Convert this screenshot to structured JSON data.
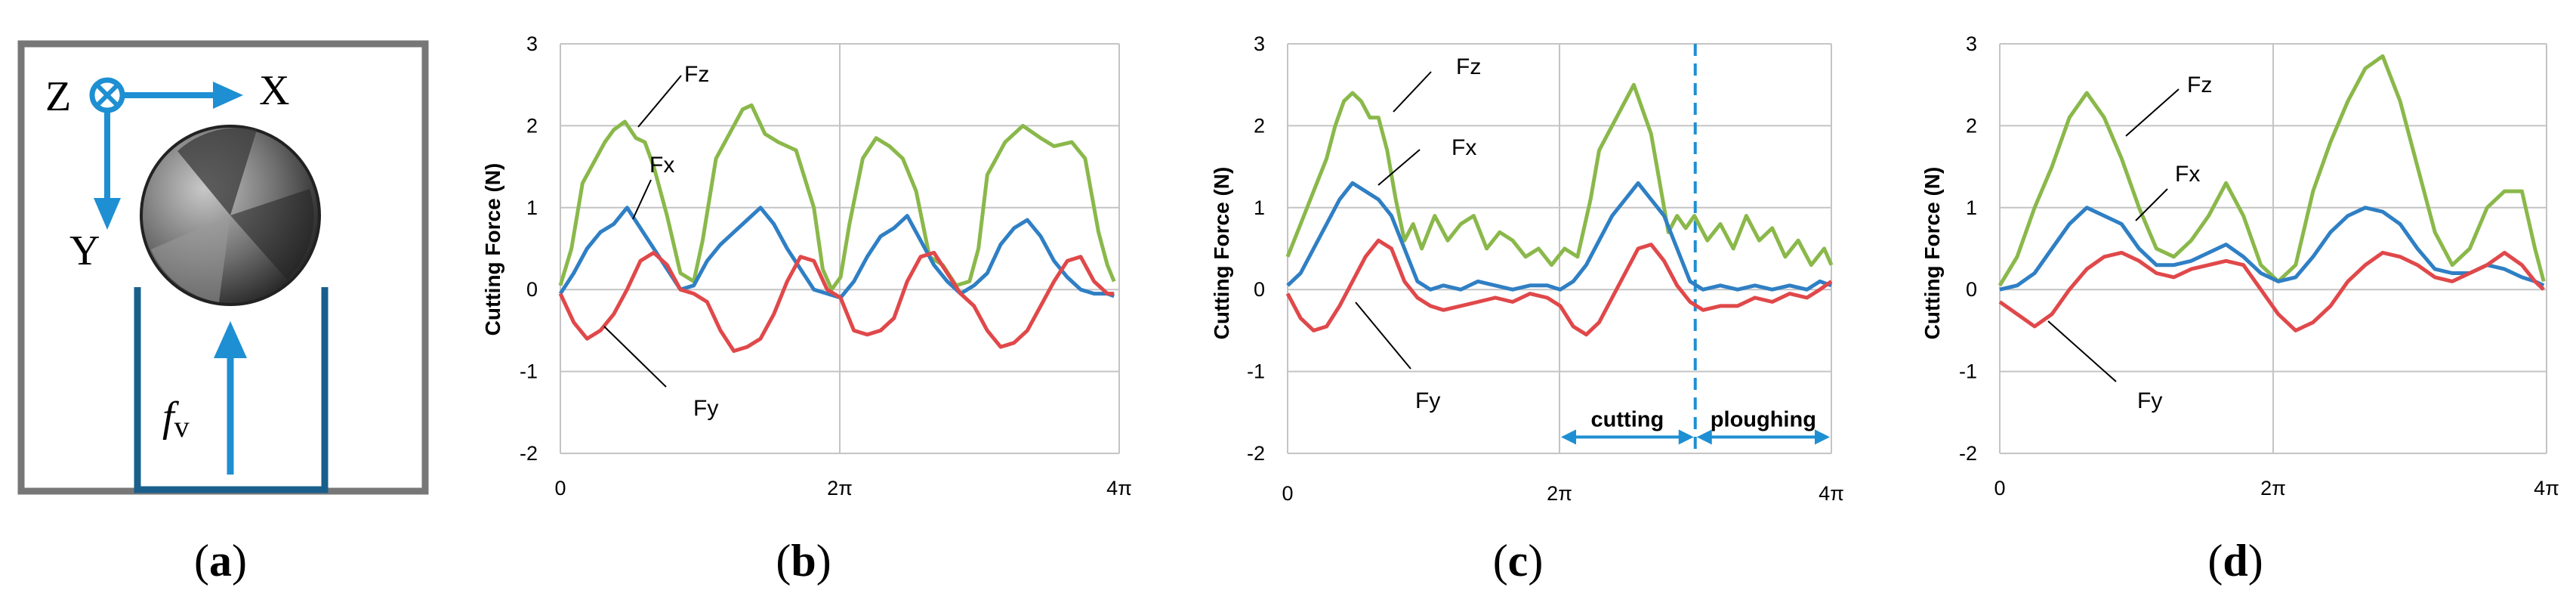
{
  "figure": {
    "labels": [
      "a",
      "b",
      "c",
      "d"
    ]
  },
  "diagram_a": {
    "axis_z": "Z",
    "axis_x": "X",
    "axis_y": "Y",
    "feed_symbol": "f",
    "feed_subscript": "v",
    "colors": {
      "frame": "#777777",
      "blue": "#1e8fd2",
      "toolpath": "#1a5f8c"
    }
  },
  "chart_data": [
    {
      "id": "b",
      "type": "line",
      "ylabel": "Cutting Force (N)",
      "ylim": [
        -2,
        3
      ],
      "yticks": [
        "3",
        "2",
        "1",
        "0",
        "-1",
        "-2"
      ],
      "xlim": [
        0,
        12.566
      ],
      "xticks": [
        "0",
        "2π",
        "4π"
      ],
      "grid": true,
      "series": [
        {
          "name": "Fz",
          "color": "#8ab84a",
          "x": [
            0,
            0.25,
            0.5,
            0.8,
            1.0,
            1.2,
            1.45,
            1.7,
            1.9,
            2.1,
            2.4,
            2.7,
            3.0,
            3.2,
            3.5,
            3.8,
            4.1,
            4.3,
            4.6,
            4.9,
            5.3,
            5.7,
            5.9,
            6.1,
            6.3,
            6.5,
            6.8,
            7.1,
            7.4,
            7.7,
            8.0,
            8.3,
            8.6,
            8.9,
            9.2,
            9.4,
            9.6,
            9.8,
            10.0,
            10.4,
            10.8,
            11.1,
            11.5,
            11.8,
            12.1,
            12.3,
            12.45
          ],
          "y": [
            0.05,
            0.5,
            1.3,
            1.6,
            1.8,
            1.95,
            2.05,
            1.85,
            1.8,
            1.5,
            0.9,
            0.2,
            0.1,
            0.6,
            1.6,
            1.9,
            2.2,
            2.25,
            1.9,
            1.8,
            1.7,
            1.0,
            0.25,
            0.0,
            0.15,
            0.8,
            1.6,
            1.85,
            1.75,
            1.6,
            1.2,
            0.4,
            0.3,
            0.05,
            0.1,
            0.5,
            1.4,
            1.6,
            1.8,
            2.0,
            1.85,
            1.75,
            1.8,
            1.6,
            0.7,
            0.3,
            0.1
          ]
        },
        {
          "name": "Fx",
          "color": "#2f7fc4",
          "x": [
            0,
            0.3,
            0.6,
            0.9,
            1.2,
            1.5,
            1.8,
            2.1,
            2.4,
            2.7,
            3.0,
            3.3,
            3.6,
            3.9,
            4.2,
            4.5,
            4.8,
            5.1,
            5.4,
            5.7,
            6.0,
            6.3,
            6.6,
            6.9,
            7.2,
            7.5,
            7.8,
            8.1,
            8.4,
            8.7,
            9.0,
            9.3,
            9.6,
            9.9,
            10.2,
            10.5,
            10.8,
            11.1,
            11.4,
            11.7,
            12.0,
            12.3,
            12.45
          ],
          "y": [
            -0.05,
            0.2,
            0.5,
            0.7,
            0.8,
            1.0,
            0.75,
            0.5,
            0.25,
            0.0,
            0.05,
            0.35,
            0.55,
            0.7,
            0.85,
            1.0,
            0.8,
            0.5,
            0.25,
            0.0,
            -0.05,
            -0.1,
            0.1,
            0.4,
            0.65,
            0.75,
            0.9,
            0.6,
            0.3,
            0.1,
            -0.05,
            0.05,
            0.2,
            0.55,
            0.75,
            0.85,
            0.65,
            0.35,
            0.15,
            0.0,
            -0.05,
            -0.05,
            -0.08
          ]
        },
        {
          "name": "Fy",
          "color": "#e0484a",
          "x": [
            0,
            0.3,
            0.6,
            0.9,
            1.2,
            1.5,
            1.8,
            2.1,
            2.4,
            2.7,
            3.0,
            3.3,
            3.6,
            3.9,
            4.2,
            4.5,
            4.8,
            5.1,
            5.4,
            5.7,
            6.0,
            6.3,
            6.6,
            6.9,
            7.2,
            7.5,
            7.8,
            8.1,
            8.4,
            8.7,
            9.0,
            9.3,
            9.6,
            9.9,
            10.2,
            10.5,
            10.8,
            11.1,
            11.4,
            11.7,
            12.0,
            12.3,
            12.45
          ],
          "y": [
            -0.05,
            -0.4,
            -0.6,
            -0.5,
            -0.3,
            0.0,
            0.35,
            0.45,
            0.3,
            0.0,
            -0.05,
            -0.15,
            -0.5,
            -0.75,
            -0.7,
            -0.6,
            -0.3,
            0.1,
            0.4,
            0.35,
            0.0,
            -0.1,
            -0.5,
            -0.55,
            -0.5,
            -0.35,
            0.1,
            0.4,
            0.45,
            0.2,
            -0.05,
            -0.2,
            -0.5,
            -0.7,
            -0.65,
            -0.5,
            -0.2,
            0.1,
            0.35,
            0.4,
            0.1,
            -0.05,
            -0.05
          ]
        }
      ],
      "annotations": [
        "Fz",
        "Fx",
        "Fy"
      ]
    },
    {
      "id": "c",
      "type": "line",
      "ylabel": "Cutting Force (N)",
      "ylim": [
        -2,
        3
      ],
      "yticks": [
        "3",
        "2",
        "1",
        "0",
        "-1",
        "-2"
      ],
      "xlim": [
        0,
        12.566
      ],
      "xticks": [
        "0",
        "2π",
        "4π"
      ],
      "grid": true,
      "series": [
        {
          "name": "Fz",
          "color": "#8ab84a",
          "x": [
            0,
            0.3,
            0.6,
            0.9,
            1.1,
            1.3,
            1.5,
            1.7,
            1.9,
            2.1,
            2.3,
            2.5,
            2.7,
            2.9,
            3.1,
            3.4,
            3.7,
            4.0,
            4.3,
            4.6,
            4.9,
            5.2,
            5.5,
            5.8,
            6.1,
            6.4,
            6.7,
            7.0,
            7.2,
            7.4,
            7.6,
            7.8,
            8.0,
            8.2,
            8.4,
            8.6,
            8.8,
            9.0,
            9.2,
            9.4,
            9.7,
            10.0,
            10.3,
            10.6,
            10.9,
            11.2,
            11.5,
            11.8,
            12.1,
            12.4,
            12.566
          ],
          "y": [
            0.4,
            0.8,
            1.2,
            1.6,
            2.0,
            2.3,
            2.4,
            2.3,
            2.1,
            2.1,
            1.7,
            1.1,
            0.6,
            0.8,
            0.5,
            0.9,
            0.6,
            0.8,
            0.9,
            0.5,
            0.7,
            0.6,
            0.4,
            0.5,
            0.3,
            0.5,
            0.4,
            1.1,
            1.7,
            1.9,
            2.1,
            2.3,
            2.5,
            2.2,
            1.9,
            1.3,
            0.7,
            0.9,
            0.75,
            0.9,
            0.6,
            0.8,
            0.5,
            0.9,
            0.6,
            0.75,
            0.4,
            0.6,
            0.3,
            0.5,
            0.3
          ]
        },
        {
          "name": "Fx",
          "color": "#2f7fc4",
          "x": [
            0,
            0.3,
            0.6,
            0.9,
            1.2,
            1.5,
            1.8,
            2.1,
            2.4,
            2.7,
            3.0,
            3.3,
            3.6,
            4.0,
            4.4,
            4.8,
            5.2,
            5.6,
            6.0,
            6.3,
            6.6,
            6.9,
            7.2,
            7.5,
            7.8,
            8.1,
            8.4,
            8.7,
            9.0,
            9.3,
            9.6,
            10.0,
            10.4,
            10.8,
            11.2,
            11.6,
            12.0,
            12.3,
            12.566
          ],
          "y": [
            0.05,
            0.2,
            0.5,
            0.8,
            1.1,
            1.3,
            1.2,
            1.1,
            0.9,
            0.5,
            0.1,
            0.0,
            0.05,
            0.0,
            0.1,
            0.05,
            0.0,
            0.05,
            0.05,
            0.0,
            0.1,
            0.3,
            0.6,
            0.9,
            1.1,
            1.3,
            1.1,
            0.9,
            0.5,
            0.1,
            0.0,
            0.05,
            0.0,
            0.05,
            0.0,
            0.05,
            0.0,
            0.1,
            0.05
          ]
        },
        {
          "name": "Fy",
          "color": "#e0484a",
          "x": [
            0,
            0.3,
            0.6,
            0.9,
            1.2,
            1.5,
            1.8,
            2.1,
            2.4,
            2.7,
            3.0,
            3.3,
            3.6,
            4.0,
            4.4,
            4.8,
            5.2,
            5.6,
            6.0,
            6.3,
            6.6,
            6.9,
            7.2,
            7.5,
            7.8,
            8.1,
            8.4,
            8.7,
            9.0,
            9.3,
            9.6,
            10.0,
            10.4,
            10.8,
            11.2,
            11.6,
            12.0,
            12.3,
            12.566
          ],
          "y": [
            -0.05,
            -0.35,
            -0.5,
            -0.45,
            -0.2,
            0.1,
            0.4,
            0.6,
            0.5,
            0.1,
            -0.1,
            -0.2,
            -0.25,
            -0.2,
            -0.15,
            -0.1,
            -0.15,
            -0.05,
            -0.1,
            -0.2,
            -0.45,
            -0.55,
            -0.4,
            -0.1,
            0.2,
            0.5,
            0.55,
            0.35,
            0.05,
            -0.15,
            -0.25,
            -0.2,
            -0.2,
            -0.1,
            -0.15,
            -0.05,
            -0.1,
            0.0,
            0.1
          ]
        }
      ],
      "annotations": [
        "Fz",
        "Fx",
        "Fy"
      ],
      "dashed_x": 9.42,
      "regions": [
        {
          "label": "cutting",
          "from": 6.283,
          "to": 9.42
        },
        {
          "label": "ploughing",
          "from": 9.42,
          "to": 12.566
        }
      ]
    },
    {
      "id": "d",
      "type": "line",
      "ylabel": "Cutting Force (N)",
      "ylim": [
        -2,
        3
      ],
      "yticks": [
        "3",
        "2",
        "1",
        "0",
        "-1",
        "-2"
      ],
      "xlim": [
        0,
        12.566
      ],
      "xticks": [
        "0",
        "2π",
        "4π"
      ],
      "grid": true,
      "series": [
        {
          "name": "Fz",
          "color": "#8ab84a",
          "x": [
            0,
            0.4,
            0.8,
            1.2,
            1.6,
            2.0,
            2.4,
            2.8,
            3.2,
            3.6,
            4.0,
            4.4,
            4.8,
            5.2,
            5.6,
            6.0,
            6.4,
            6.8,
            7.2,
            7.6,
            8.0,
            8.4,
            8.8,
            9.2,
            9.6,
            10.0,
            10.4,
            10.8,
            11.2,
            11.6,
            12.0,
            12.3,
            12.5
          ],
          "y": [
            0.05,
            0.4,
            1.0,
            1.5,
            2.1,
            2.4,
            2.1,
            1.6,
            1.0,
            0.5,
            0.4,
            0.6,
            0.9,
            1.3,
            0.9,
            0.3,
            0.1,
            0.3,
            1.2,
            1.8,
            2.3,
            2.7,
            2.85,
            2.3,
            1.5,
            0.7,
            0.3,
            0.5,
            1.0,
            1.2,
            1.2,
            0.5,
            0.1
          ]
        },
        {
          "name": "Fx",
          "color": "#2f7fc4",
          "x": [
            0,
            0.4,
            0.8,
            1.2,
            1.6,
            2.0,
            2.4,
            2.8,
            3.2,
            3.6,
            4.0,
            4.4,
            4.8,
            5.2,
            5.6,
            6.0,
            6.4,
            6.8,
            7.2,
            7.6,
            8.0,
            8.4,
            8.8,
            9.2,
            9.6,
            10.0,
            10.4,
            10.8,
            11.2,
            11.6,
            12.0,
            12.3,
            12.5
          ],
          "y": [
            0.0,
            0.05,
            0.2,
            0.5,
            0.8,
            1.0,
            0.9,
            0.8,
            0.5,
            0.3,
            0.3,
            0.35,
            0.45,
            0.55,
            0.4,
            0.2,
            0.1,
            0.15,
            0.4,
            0.7,
            0.9,
            1.0,
            0.95,
            0.8,
            0.5,
            0.25,
            0.2,
            0.2,
            0.3,
            0.25,
            0.15,
            0.1,
            0.05
          ]
        },
        {
          "name": "Fy",
          "color": "#e0484a",
          "x": [
            0,
            0.4,
            0.8,
            1.2,
            1.6,
            2.0,
            2.4,
            2.8,
            3.2,
            3.6,
            4.0,
            4.4,
            4.8,
            5.2,
            5.6,
            6.0,
            6.4,
            6.8,
            7.2,
            7.6,
            8.0,
            8.4,
            8.8,
            9.2,
            9.6,
            10.0,
            10.4,
            10.8,
            11.2,
            11.6,
            12.0,
            12.3,
            12.5
          ],
          "y": [
            -0.15,
            -0.3,
            -0.45,
            -0.3,
            0.0,
            0.25,
            0.4,
            0.45,
            0.35,
            0.2,
            0.15,
            0.25,
            0.3,
            0.35,
            0.3,
            0.0,
            -0.3,
            -0.5,
            -0.4,
            -0.2,
            0.1,
            0.3,
            0.45,
            0.4,
            0.3,
            0.15,
            0.1,
            0.2,
            0.3,
            0.45,
            0.3,
            0.1,
            0.0
          ]
        }
      ],
      "annotations": [
        "Fz",
        "Fx",
        "Fy"
      ]
    }
  ]
}
